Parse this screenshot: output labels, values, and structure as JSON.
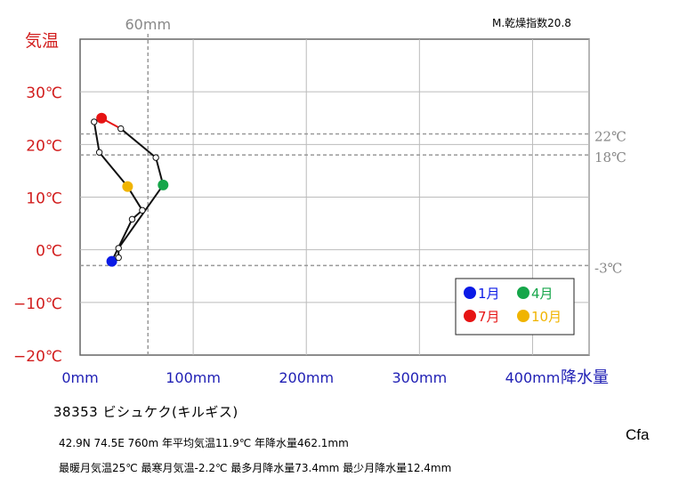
{
  "chart_data": {
    "type": "climograph",
    "x_axis": {
      "label": "降水量",
      "min": 0,
      "max": 450,
      "ticks": [
        0,
        100,
        200,
        300,
        400
      ],
      "tick_labels": [
        "0mm",
        "100mm",
        "200mm",
        "300mm",
        "400mm"
      ],
      "color": "#1f1fb4"
    },
    "y_axis": {
      "label": "気温",
      "min": -20,
      "max": 40,
      "ticks": [
        -20,
        -10,
        0,
        10,
        20,
        30
      ],
      "tick_labels": [
        "−20℃",
        "−10℃",
        "0℃",
        "10℃",
        "20℃",
        "30℃"
      ],
      "color": "#d21e1e"
    },
    "reference_lines": {
      "vertical": {
        "value": 60,
        "label": "60mm"
      },
      "horizontal": [
        {
          "value": 22,
          "label": "22℃"
        },
        {
          "value": 18,
          "label": "18℃"
        },
        {
          "value": -3,
          "label": "-3℃"
        }
      ],
      "color": "#999999"
    },
    "months": [
      {
        "m": 1,
        "precip": 28,
        "temp": -2.2
      },
      {
        "m": 2,
        "precip": 34,
        "temp": -1.5
      },
      {
        "m": 3,
        "precip": 34,
        "temp": 0.3
      },
      {
        "m": 4,
        "precip": 73.4,
        "temp": 12.3
      },
      {
        "m": 5,
        "precip": 67,
        "temp": 17.5
      },
      {
        "m": 6,
        "precip": 36,
        "temp": 23
      },
      {
        "m": 7,
        "precip": 19,
        "temp": 25
      },
      {
        "m": 8,
        "precip": 12.4,
        "temp": 24.3
      },
      {
        "m": 9,
        "precip": 17,
        "temp": 18.5
      },
      {
        "m": 10,
        "precip": 42,
        "temp": 12
      },
      {
        "m": 11,
        "precip": 55,
        "temp": 7.5
      },
      {
        "m": 12,
        "precip": 46,
        "temp": 5.8
      }
    ],
    "highlight_months": [
      {
        "m": 1,
        "color": "#0a1ae6"
      },
      {
        "m": 4,
        "color": "#16a64a"
      },
      {
        "m": 7,
        "color": "#e61414"
      },
      {
        "m": 10,
        "color": "#f0b400"
      }
    ],
    "legend": {
      "placement": "bottom-right",
      "items": [
        {
          "label": "1月",
          "color": "#0a1ae6"
        },
        {
          "label": "4月",
          "color": "#16a64a"
        },
        {
          "label": "7月",
          "color": "#e61414"
        },
        {
          "label": "10月",
          "color": "#f0b400"
        }
      ]
    },
    "aridity_label": "M.乾燥指数20.8",
    "grid": true
  },
  "station": {
    "title": "38353  ビシュケク(キルギス)",
    "line1": "42.9N  74.5E 760m  年平均気温11.9℃ 年降水量462.1mm",
    "line2": "最暖月気温25℃ 最寒月気温-2.2℃ 最多月降水量73.4mm 最少月降水量12.4mm",
    "climate_class": "Cfa"
  }
}
